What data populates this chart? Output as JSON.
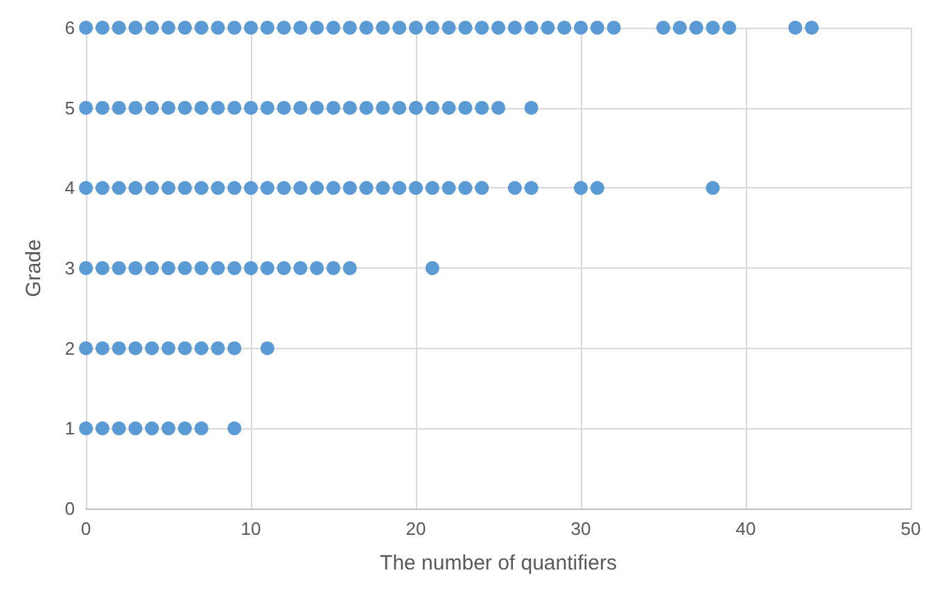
{
  "chart_data": {
    "type": "scatter",
    "xlabel": "The number of quantifiers",
    "ylabel": "Grade",
    "color": "#5b9bd5",
    "marker": "circle",
    "grid": true,
    "xlim": [
      0,
      50
    ],
    "xticks": [
      0,
      10,
      20,
      30,
      40,
      50
    ],
    "ylim": [
      0,
      6
    ],
    "yticks": [
      0,
      1,
      2,
      3,
      4,
      5,
      6
    ],
    "x": [
      0,
      1,
      2,
      3,
      4,
      5,
      6,
      7,
      9,
      0,
      1,
      2,
      3,
      4,
      5,
      6,
      7,
      8,
      9,
      11,
      0,
      1,
      2,
      3,
      4,
      5,
      6,
      7,
      8,
      9,
      10,
      11,
      12,
      13,
      14,
      15,
      16,
      21,
      0,
      1,
      2,
      3,
      4,
      5,
      6,
      7,
      8,
      9,
      10,
      11,
      12,
      13,
      14,
      15,
      16,
      17,
      18,
      19,
      20,
      21,
      22,
      23,
      24,
      26,
      27,
      30,
      31,
      38,
      0,
      1,
      2,
      3,
      4,
      5,
      6,
      7,
      8,
      9,
      10,
      11,
      12,
      13,
      14,
      15,
      16,
      17,
      18,
      19,
      20,
      21,
      22,
      23,
      24,
      25,
      27,
      0,
      1,
      2,
      3,
      4,
      5,
      6,
      7,
      8,
      9,
      10,
      11,
      12,
      13,
      14,
      15,
      16,
      17,
      18,
      19,
      20,
      21,
      22,
      23,
      24,
      25,
      26,
      27,
      28,
      29,
      30,
      31,
      32,
      35,
      36,
      37,
      38,
      39,
      43,
      44
    ],
    "values": [
      1,
      1,
      1,
      1,
      1,
      1,
      1,
      1,
      1,
      2,
      2,
      2,
      2,
      2,
      2,
      2,
      2,
      2,
      2,
      2,
      3,
      3,
      3,
      3,
      3,
      3,
      3,
      3,
      3,
      3,
      3,
      3,
      3,
      3,
      3,
      3,
      3,
      3,
      4,
      4,
      4,
      4,
      4,
      4,
      4,
      4,
      4,
      4,
      4,
      4,
      4,
      4,
      4,
      4,
      4,
      4,
      4,
      4,
      4,
      4,
      4,
      4,
      4,
      4,
      4,
      4,
      4,
      4,
      5,
      5,
      5,
      5,
      5,
      5,
      5,
      5,
      5,
      5,
      5,
      5,
      5,
      5,
      5,
      5,
      5,
      5,
      5,
      5,
      5,
      5,
      5,
      5,
      5,
      5,
      5,
      6,
      6,
      6,
      6,
      6,
      6,
      6,
      6,
      6,
      6,
      6,
      6,
      6,
      6,
      6,
      6,
      6,
      6,
      6,
      6,
      6,
      6,
      6,
      6,
      6,
      6,
      6,
      6,
      6,
      6,
      6,
      6,
      6,
      6,
      6,
      6,
      6,
      6,
      6,
      6
    ]
  }
}
